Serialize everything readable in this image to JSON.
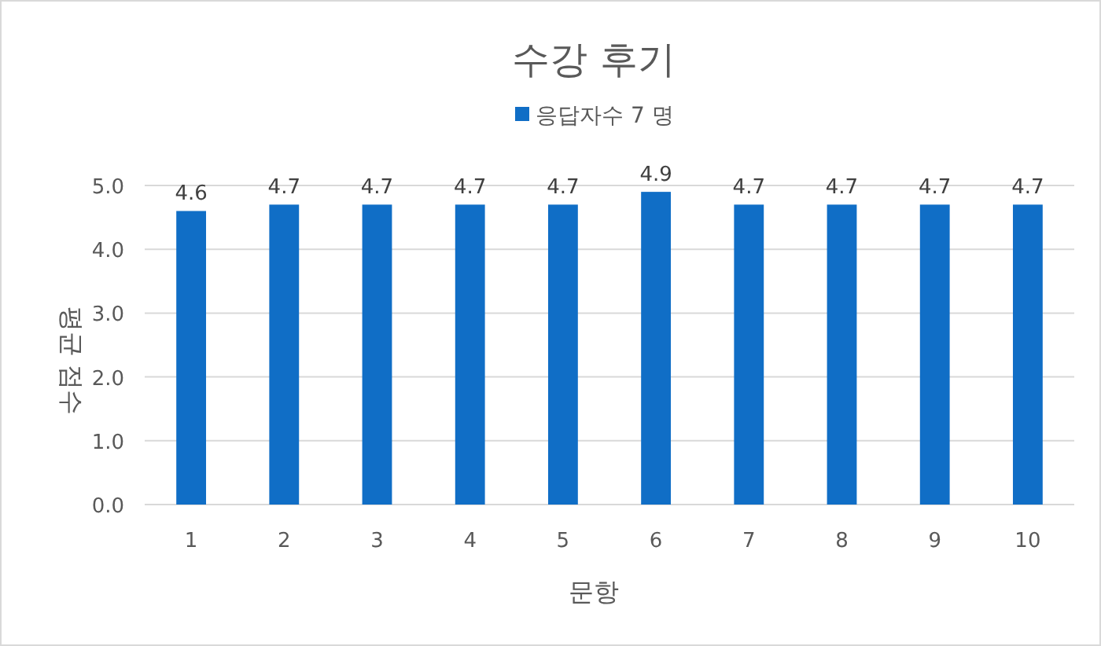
{
  "chart_data": {
    "type": "bar",
    "title": "수강 후기",
    "xlabel": "문항",
    "ylabel": "평균 점수",
    "categories": [
      "1",
      "2",
      "3",
      "4",
      "5",
      "6",
      "7",
      "8",
      "9",
      "10"
    ],
    "series": [
      {
        "name": "응답자수 7 명",
        "color": "#106ec6",
        "values": [
          4.6,
          4.7,
          4.7,
          4.7,
          4.7,
          4.9,
          4.7,
          4.7,
          4.7,
          4.7
        ]
      }
    ],
    "ylim": [
      0,
      5
    ],
    "yticks": [
      {
        "value": 0,
        "label": "0.0"
      },
      {
        "value": 1,
        "label": "1.0"
      },
      {
        "value": 2,
        "label": "2.0"
      },
      {
        "value": 3,
        "label": "3.0"
      },
      {
        "value": 4,
        "label": "4.0"
      },
      {
        "value": 5,
        "label": "5.0"
      }
    ],
    "grid": "y",
    "legend": "top",
    "data_labels": true
  }
}
